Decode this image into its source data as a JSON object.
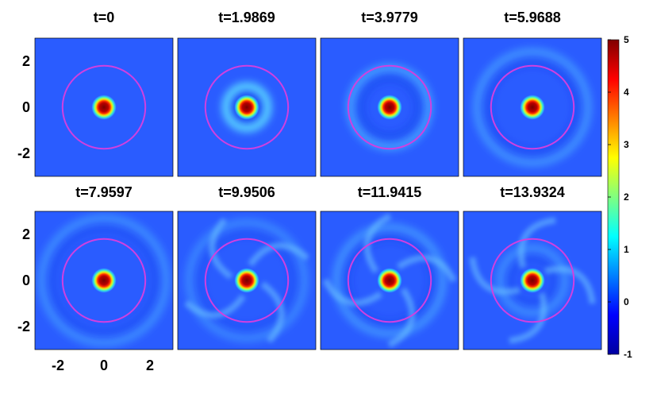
{
  "chart_data": {
    "type": "heatmap",
    "layout": "2x4 panel grid",
    "panels": [
      {
        "title": "t=0",
        "t": 0,
        "ring_strength": 0.0,
        "ring_radius": 0,
        "arms": 0
      },
      {
        "title": "t=1.9869",
        "t": 1.9869,
        "ring_strength": 1.0,
        "ring_radius": 0.9,
        "arms": 0
      },
      {
        "title": "t=3.9779",
        "t": 3.9779,
        "ring_strength": 0.55,
        "ring_radius": 1.7,
        "arms": 0
      },
      {
        "title": "t=5.9688",
        "t": 5.9688,
        "ring_strength": 0.45,
        "ring_radius": 2.4,
        "arms": 0
      },
      {
        "title": "t=7.9597",
        "t": 7.9597,
        "ring_strength": 0.4,
        "ring_radius": 2.7,
        "arms": 0
      },
      {
        "title": "t=9.9506",
        "t": 9.9506,
        "ring_strength": 0.35,
        "ring_radius": 2.5,
        "arms": 4
      },
      {
        "title": "t=11.9415",
        "t": 11.9415,
        "ring_strength": 0.45,
        "ring_radius": 2.3,
        "arms": 4
      },
      {
        "title": "t=13.9324",
        "t": 13.9324,
        "ring_strength": 0.4,
        "ring_radius": 1.4,
        "arms": 4
      }
    ],
    "xlim": [
      -3,
      3
    ],
    "ylim": [
      -3,
      3
    ],
    "xticks": [
      "-2",
      "0",
      "2"
    ],
    "yticks": [
      "2",
      "0",
      "-2"
    ],
    "circle_radius": 1.8,
    "circle_color": "#d040e0",
    "peak_value": 5,
    "colorbar": {
      "ticks": [
        "5",
        "4",
        "3",
        "2",
        "1",
        "0",
        "-1"
      ],
      "range": [
        -1,
        5
      ],
      "colormap": "jet"
    }
  }
}
